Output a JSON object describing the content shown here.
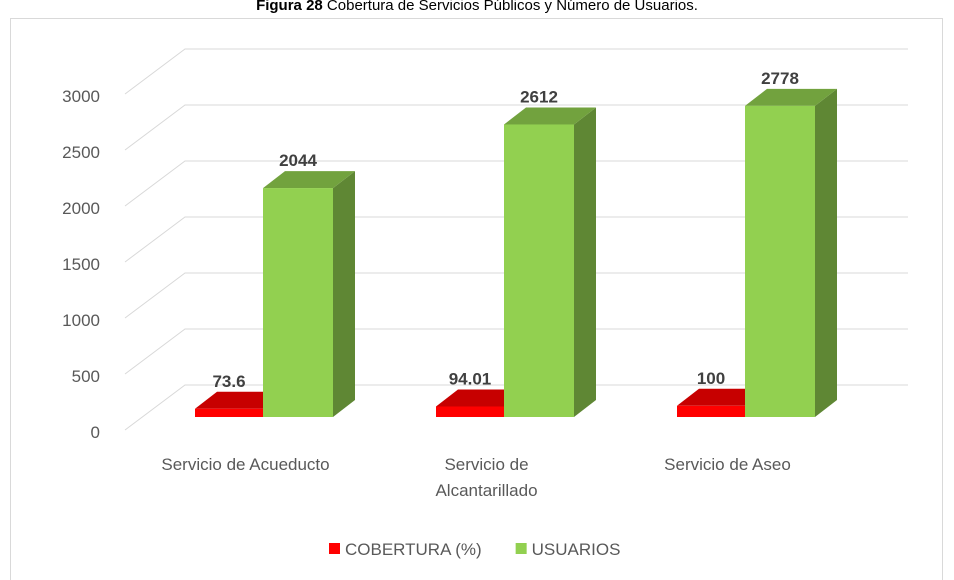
{
  "chart_data": {
    "type": "bar3d",
    "title_label": "Figura 28",
    "title": "Cobertura de Servicios Públicos y Número de Usuarios.",
    "categories": [
      "Servicio de Acueducto",
      "Servicio de Alcantarillado",
      "Servicio de Aseo"
    ],
    "series": [
      {
        "name": "COBERTURA (%)",
        "color": "#ff0000",
        "values": [
          73.6,
          94.01,
          100
        ]
      },
      {
        "name": "USUARIOS",
        "color": "#92d050",
        "values": [
          2044,
          2612,
          2778
        ]
      }
    ],
    "ylim": [
      0,
      3000
    ],
    "yticks": [
      0,
      500,
      1000,
      1500,
      2000,
      2500,
      3000
    ],
    "grid": true,
    "legend": "bottom"
  }
}
